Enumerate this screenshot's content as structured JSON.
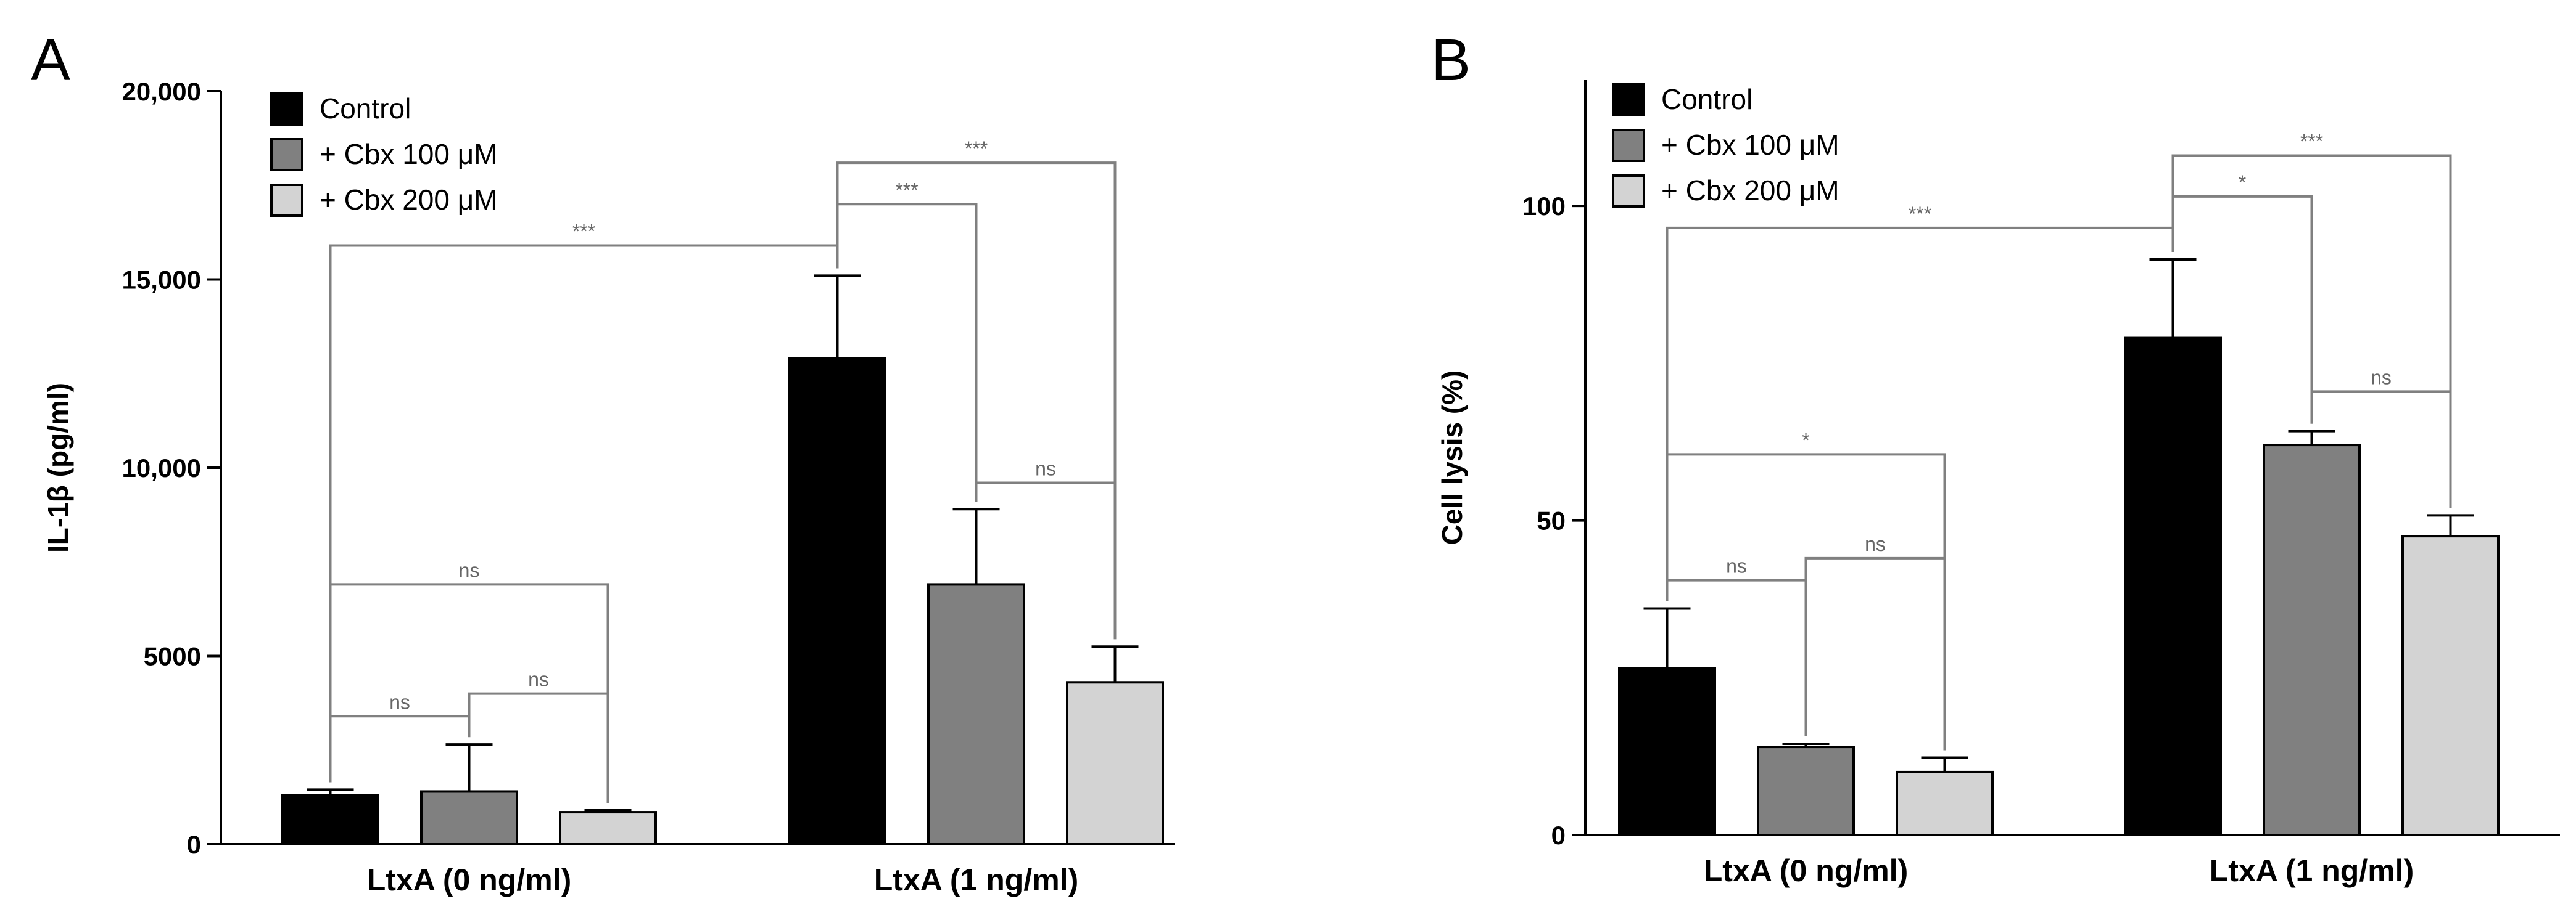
{
  "chart_data": [
    {
      "panel": "A",
      "type": "bar",
      "ylabel": "IL-1β (pg/ml)",
      "ylim": [
        0,
        20000
      ],
      "yticks": [
        0,
        5000,
        10000,
        15000,
        20000
      ],
      "ytick_labels": [
        "0",
        "5000",
        "10,000",
        "15,000",
        "20,000"
      ],
      "categories": [
        "LtxA (0 ng/ml)",
        "LtxA (1 ng/ml)"
      ],
      "series": [
        {
          "name": "Control",
          "color": "#000000",
          "values": [
            1300,
            12900
          ],
          "errors": [
            150,
            2200
          ]
        },
        {
          "name": "+ Cbx 100 μM",
          "color": "#808080",
          "values": [
            1400,
            6900
          ],
          "errors": [
            1250,
            2000
          ]
        },
        {
          "name": "+ Cbx 200 μM",
          "color": "#d3d3d3",
          "values": [
            850,
            4300
          ],
          "errors": [
            50,
            950
          ]
        }
      ],
      "comparisons": [
        {
          "from": [
            0,
            0
          ],
          "to": [
            0,
            1
          ],
          "label": "ns",
          "y": 3400
        },
        {
          "from": [
            0,
            1
          ],
          "to": [
            0,
            2
          ],
          "label": "ns",
          "y": 4000
        },
        {
          "from": [
            0,
            0
          ],
          "to": [
            0,
            2
          ],
          "label": "ns",
          "y": 6900
        },
        {
          "from": [
            1,
            1
          ],
          "to": [
            1,
            2
          ],
          "label": "ns",
          "y": 9600
        },
        {
          "from": [
            0,
            0
          ],
          "to": [
            1,
            0
          ],
          "label": "***",
          "y": 15900
        },
        {
          "from": [
            1,
            0
          ],
          "to": [
            1,
            1
          ],
          "label": "***",
          "y": 17000
        },
        {
          "from": [
            1,
            0
          ],
          "to": [
            1,
            2
          ],
          "label": "***",
          "y": 18100
        }
      ]
    },
    {
      "panel": "B",
      "type": "bar",
      "ylabel": "Cell lysis (%)",
      "ylim": [
        0,
        120
      ],
      "yticks": [
        0,
        50,
        100
      ],
      "ytick_labels": [
        "0",
        "50",
        "100"
      ],
      "categories": [
        "LtxA (0 ng/ml)",
        "LtxA (1 ng/ml)"
      ],
      "series": [
        {
          "name": "Control",
          "color": "#000000",
          "values": [
            26.5,
            79
          ],
          "errors": [
            9.5,
            12.5
          ]
        },
        {
          "name": "+ Cbx 100 μM",
          "color": "#808080",
          "values": [
            14,
            62
          ],
          "errors": [
            0.5,
            2.2
          ]
        },
        {
          "name": "+ Cbx 200 μM",
          "color": "#d3d3d3",
          "values": [
            10,
            47.5
          ],
          "errors": [
            2.3,
            3.3
          ]
        }
      ],
      "comparisons": [
        {
          "from": [
            0,
            0
          ],
          "to": [
            0,
            1
          ],
          "label": "ns",
          "y": 40.5
        },
        {
          "from": [
            0,
            1
          ],
          "to": [
            0,
            2
          ],
          "label": "ns",
          "y": 44
        },
        {
          "from": [
            0,
            0
          ],
          "to": [
            0,
            2
          ],
          "label": "*",
          "y": 60.5
        },
        {
          "from": [
            1,
            1
          ],
          "to": [
            1,
            2
          ],
          "label": "ns",
          "y": 70.5
        },
        {
          "from": [
            0,
            0
          ],
          "to": [
            1,
            0
          ],
          "label": "***",
          "y": 96.5
        },
        {
          "from": [
            1,
            0
          ],
          "to": [
            1,
            1
          ],
          "label": "*",
          "y": 101.5
        },
        {
          "from": [
            1,
            0
          ],
          "to": [
            1,
            2
          ],
          "label": "***",
          "y": 108
        }
      ]
    }
  ]
}
